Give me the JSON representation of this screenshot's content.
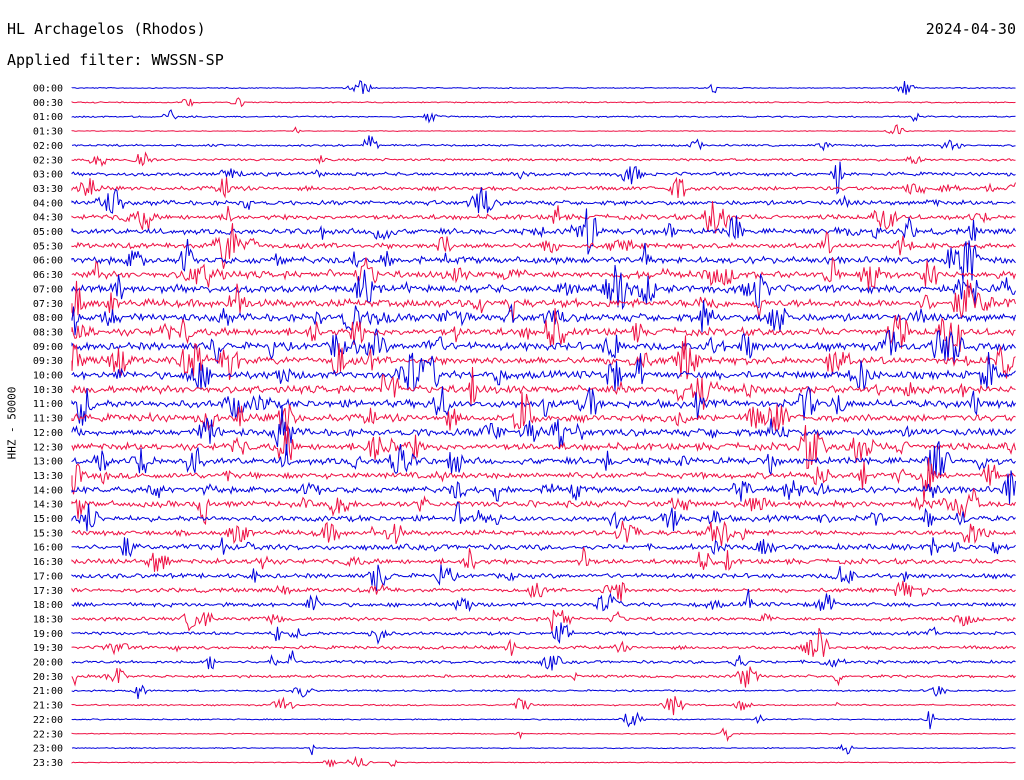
{
  "header": {
    "station": "HL Archagelos (Rhodos)",
    "date": "2024-04-30",
    "filter_label": "Applied filter: WWSSN-SP"
  },
  "chart_data": {
    "type": "helicorder",
    "title": "HL Archagelos (Rhodos)",
    "ylabel": "HHZ - 50000",
    "colors": [
      "#0000dd",
      "#ee1144"
    ],
    "rows": [
      "00:00",
      "00:30",
      "01:00",
      "01:30",
      "02:00",
      "02:30",
      "03:00",
      "03:30",
      "04:00",
      "04:30",
      "05:00",
      "05:30",
      "06:00",
      "06:30",
      "07:00",
      "07:30",
      "08:00",
      "08:30",
      "09:00",
      "09:30",
      "10:00",
      "10:30",
      "11:00",
      "11:30",
      "12:00",
      "12:30",
      "13:00",
      "13:30",
      "14:00",
      "14:30",
      "15:00",
      "15:30",
      "16:00",
      "16:30",
      "17:00",
      "17:30",
      "18:00",
      "18:30",
      "19:00",
      "19:30",
      "20:00",
      "20:30",
      "21:00",
      "21:30",
      "22:00",
      "22:30",
      "23:00",
      "23:30"
    ],
    "noise_level": [
      0.4,
      0.5,
      0.6,
      0.3,
      0.8,
      1.0,
      1.4,
      1.6,
      1.8,
      2.0,
      2.2,
      2.2,
      2.6,
      2.8,
      3.0,
      3.0,
      3.0,
      3.0,
      3.0,
      3.0,
      3.0,
      3.0,
      3.0,
      2.8,
      2.8,
      2.8,
      2.6,
      2.4,
      2.4,
      2.4,
      2.2,
      2.0,
      2.2,
      2.0,
      1.8,
      1.6,
      1.6,
      1.4,
      1.3,
      1.3,
      1.2,
      1.1,
      0.7,
      0.6,
      0.5,
      0.4,
      0.4,
      0.3
    ]
  }
}
